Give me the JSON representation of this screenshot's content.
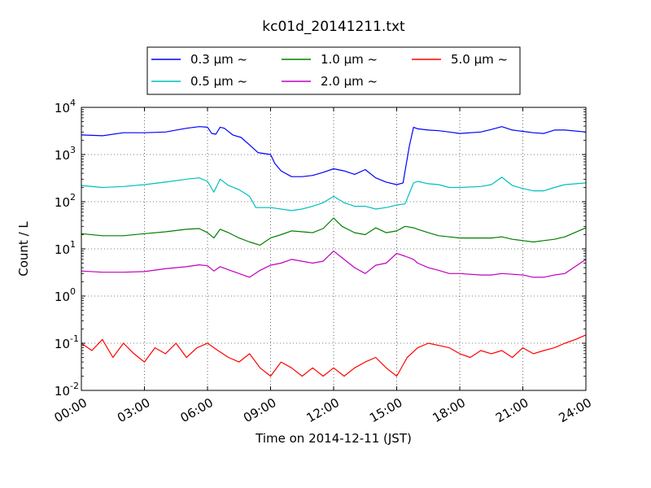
{
  "chart_data": {
    "type": "line",
    "title": "kc01d_20141211.txt",
    "xlabel": "Time on 2014-12-11 (JST)",
    "ylabel": "Count / L",
    "y_scale": "log",
    "ylim": [
      0.01,
      10000
    ],
    "xlim": [
      0,
      24
    ],
    "x_unit": "hours (JST)",
    "grid": true,
    "legend_position": "top, above plot",
    "x_tick_labels": [
      "00:00",
      "03:00",
      "06:00",
      "09:00",
      "12:00",
      "15:00",
      "18:00",
      "21:00",
      "24:00"
    ],
    "y_tick_labels": [
      {
        "base": "10",
        "exp": "-2"
      },
      {
        "base": "10",
        "exp": "-1"
      },
      {
        "base": "10",
        "exp": "0"
      },
      {
        "base": "10",
        "exp": "1"
      },
      {
        "base": "10",
        "exp": "2"
      },
      {
        "base": "10",
        "exp": "3"
      },
      {
        "base": "10",
        "exp": "4"
      }
    ],
    "series": [
      {
        "name": "0.3 μm ~",
        "color": "#0000ff",
        "points": [
          [
            0,
            2600
          ],
          [
            1,
            2500
          ],
          [
            2,
            2900
          ],
          [
            3,
            2900
          ],
          [
            4,
            3000
          ],
          [
            5,
            3600
          ],
          [
            5.6,
            3900
          ],
          [
            6,
            3800
          ],
          [
            6.2,
            2800
          ],
          [
            6.4,
            2700
          ],
          [
            6.6,
            3800
          ],
          [
            6.8,
            3600
          ],
          [
            7.2,
            2600
          ],
          [
            7.6,
            2300
          ],
          [
            8,
            1600
          ],
          [
            8.4,
            1100
          ],
          [
            9,
            1000
          ],
          [
            9.2,
            650
          ],
          [
            9.5,
            450
          ],
          [
            10,
            340
          ],
          [
            10.5,
            340
          ],
          [
            11,
            360
          ],
          [
            11.5,
            420
          ],
          [
            12,
            500
          ],
          [
            12.5,
            450
          ],
          [
            13,
            380
          ],
          [
            13.5,
            480
          ],
          [
            14,
            320
          ],
          [
            14.5,
            260
          ],
          [
            15,
            230
          ],
          [
            15.3,
            250
          ],
          [
            15.6,
            1500
          ],
          [
            15.8,
            3800
          ],
          [
            16,
            3500
          ],
          [
            16.5,
            3300
          ],
          [
            17,
            3200
          ],
          [
            17.5,
            3000
          ],
          [
            18,
            2800
          ],
          [
            19,
            3000
          ],
          [
            19.5,
            3400
          ],
          [
            20,
            3900
          ],
          [
            20.5,
            3300
          ],
          [
            21,
            3100
          ],
          [
            21.5,
            2900
          ],
          [
            22,
            2800
          ],
          [
            22.5,
            3300
          ],
          [
            23,
            3300
          ],
          [
            24,
            3000
          ]
        ]
      },
      {
        "name": "0.5 μm ~",
        "color": "#00bfbf",
        "points": [
          [
            0,
            220
          ],
          [
            1,
            200
          ],
          [
            2,
            210
          ],
          [
            3,
            230
          ],
          [
            4,
            260
          ],
          [
            5,
            300
          ],
          [
            5.6,
            320
          ],
          [
            6,
            270
          ],
          [
            6.3,
            160
          ],
          [
            6.6,
            300
          ],
          [
            7,
            220
          ],
          [
            7.5,
            180
          ],
          [
            8,
            130
          ],
          [
            8.3,
            75
          ],
          [
            9,
            75
          ],
          [
            10,
            65
          ],
          [
            10.5,
            70
          ],
          [
            11,
            80
          ],
          [
            11.5,
            95
          ],
          [
            12,
            130
          ],
          [
            12.5,
            95
          ],
          [
            13,
            80
          ],
          [
            13.5,
            80
          ],
          [
            14,
            70
          ],
          [
            14.5,
            75
          ],
          [
            15,
            85
          ],
          [
            15.4,
            90
          ],
          [
            15.8,
            250
          ],
          [
            16,
            270
          ],
          [
            16.5,
            240
          ],
          [
            17,
            230
          ],
          [
            17.5,
            200
          ],
          [
            18,
            200
          ],
          [
            19,
            210
          ],
          [
            19.5,
            230
          ],
          [
            20,
            330
          ],
          [
            20.5,
            220
          ],
          [
            21,
            190
          ],
          [
            21.5,
            170
          ],
          [
            22,
            170
          ],
          [
            22.5,
            200
          ],
          [
            23,
            230
          ],
          [
            24,
            250
          ]
        ]
      },
      {
        "name": "1.0 μm ~",
        "color": "#007f00",
        "points": [
          [
            0,
            21
          ],
          [
            1,
            19
          ],
          [
            2,
            19
          ],
          [
            3,
            21
          ],
          [
            4,
            23
          ],
          [
            5,
            26
          ],
          [
            5.6,
            27
          ],
          [
            6,
            22
          ],
          [
            6.3,
            17
          ],
          [
            6.6,
            26
          ],
          [
            7,
            22
          ],
          [
            7.5,
            17
          ],
          [
            8,
            14
          ],
          [
            8.5,
            12
          ],
          [
            9,
            17
          ],
          [
            9.5,
            20
          ],
          [
            10,
            24
          ],
          [
            11,
            22
          ],
          [
            11.5,
            27
          ],
          [
            12,
            45
          ],
          [
            12.4,
            30
          ],
          [
            13,
            22
          ],
          [
            13.5,
            20
          ],
          [
            14,
            28
          ],
          [
            14.5,
            22
          ],
          [
            15,
            24
          ],
          [
            15.4,
            30
          ],
          [
            15.8,
            28
          ],
          [
            16,
            26
          ],
          [
            16.5,
            22
          ],
          [
            17,
            19
          ],
          [
            17.5,
            18
          ],
          [
            18,
            17
          ],
          [
            19,
            17
          ],
          [
            19.5,
            17
          ],
          [
            20,
            18
          ],
          [
            20.5,
            16
          ],
          [
            21,
            15
          ],
          [
            21.5,
            14
          ],
          [
            22,
            15
          ],
          [
            22.5,
            16
          ],
          [
            23,
            18
          ],
          [
            24,
            28
          ]
        ]
      },
      {
        "name": "2.0 μm ~",
        "color": "#bf00bf",
        "points": [
          [
            0,
            3.4
          ],
          [
            1,
            3.2
          ],
          [
            2,
            3.2
          ],
          [
            3,
            3.3
          ],
          [
            4,
            3.8
          ],
          [
            5,
            4.2
          ],
          [
            5.6,
            4.6
          ],
          [
            6,
            4.4
          ],
          [
            6.3,
            3.4
          ],
          [
            6.6,
            4.2
          ],
          [
            7,
            3.6
          ],
          [
            7.5,
            3.0
          ],
          [
            8,
            2.5
          ],
          [
            8.5,
            3.5
          ],
          [
            9,
            4.5
          ],
          [
            9.5,
            5
          ],
          [
            10,
            6
          ],
          [
            11,
            5
          ],
          [
            11.5,
            5.5
          ],
          [
            12,
            9
          ],
          [
            12.4,
            6.5
          ],
          [
            13,
            4
          ],
          [
            13.5,
            3
          ],
          [
            14,
            4.5
          ],
          [
            14.5,
            5
          ],
          [
            15,
            8
          ],
          [
            15.4,
            7
          ],
          [
            15.8,
            6
          ],
          [
            16,
            5
          ],
          [
            16.5,
            4
          ],
          [
            17,
            3.5
          ],
          [
            17.5,
            3
          ],
          [
            18,
            3
          ],
          [
            19,
            2.8
          ],
          [
            19.5,
            2.8
          ],
          [
            20,
            3.0
          ],
          [
            20.5,
            2.9
          ],
          [
            21,
            2.8
          ],
          [
            21.5,
            2.5
          ],
          [
            22,
            2.5
          ],
          [
            22.5,
            2.8
          ],
          [
            23,
            3
          ],
          [
            24,
            6
          ]
        ]
      },
      {
        "name": "5.0 μm ~",
        "color": "#ff0000",
        "points": [
          [
            0,
            0.1
          ],
          [
            0.5,
            0.07
          ],
          [
            1,
            0.12
          ],
          [
            1.5,
            0.05
          ],
          [
            2,
            0.1
          ],
          [
            2.5,
            0.06
          ],
          [
            3,
            0.04
          ],
          [
            3.5,
            0.08
          ],
          [
            4,
            0.06
          ],
          [
            4.5,
            0.1
          ],
          [
            5,
            0.05
          ],
          [
            5.5,
            0.08
          ],
          [
            6,
            0.1
          ],
          [
            6.5,
            0.07
          ],
          [
            7,
            0.05
          ],
          [
            7.5,
            0.04
          ],
          [
            8,
            0.06
          ],
          [
            8.5,
            0.03
          ],
          [
            9,
            0.02
          ],
          [
            9.5,
            0.04
          ],
          [
            10,
            0.03
          ],
          [
            10.5,
            0.02
          ],
          [
            11,
            0.03
          ],
          [
            11.5,
            0.02
          ],
          [
            12,
            0.03
          ],
          [
            12.5,
            0.02
          ],
          [
            13,
            0.03
          ],
          [
            13.5,
            0.04
          ],
          [
            14,
            0.05
          ],
          [
            14.5,
            0.03
          ],
          [
            15,
            0.02
          ],
          [
            15.5,
            0.05
          ],
          [
            16,
            0.08
          ],
          [
            16.5,
            0.1
          ],
          [
            17,
            0.09
          ],
          [
            17.5,
            0.08
          ],
          [
            18,
            0.06
          ],
          [
            18.5,
            0.05
          ],
          [
            19,
            0.07
          ],
          [
            19.5,
            0.06
          ],
          [
            20,
            0.07
          ],
          [
            20.5,
            0.05
          ],
          [
            21,
            0.08
          ],
          [
            21.5,
            0.06
          ],
          [
            22,
            0.07
          ],
          [
            22.5,
            0.08
          ],
          [
            23,
            0.1
          ],
          [
            23.5,
            0.12
          ],
          [
            24,
            0.15
          ]
        ]
      }
    ]
  }
}
